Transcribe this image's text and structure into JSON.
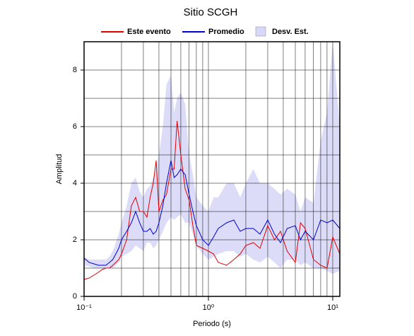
{
  "chart_data": {
    "type": "line",
    "title": "Sitio SCGH",
    "xlabel": "Periodo (s)",
    "ylabel": "Amplitud",
    "xscale": "log",
    "xlim": [
      0.1,
      11.4
    ],
    "ylim": [
      0,
      9
    ],
    "xticks": [
      {
        "value": 0.1,
        "label": "10⁻¹"
      },
      {
        "value": 1,
        "label": "10⁰"
      },
      {
        "value": 10,
        "label": "10¹"
      }
    ],
    "xminor": [
      0.2,
      0.3,
      0.4,
      0.5,
      0.6,
      0.7,
      0.8,
      0.9,
      2,
      3,
      4,
      5,
      6,
      7,
      8,
      9
    ],
    "yticks": [
      0,
      2,
      4,
      6,
      8
    ],
    "yminor": [
      1,
      3,
      5,
      7
    ],
    "grid": true,
    "legend": "top",
    "x": [
      0.1,
      0.11,
      0.12,
      0.13,
      0.14,
      0.15,
      0.16,
      0.17,
      0.18,
      0.19,
      0.2,
      0.22,
      0.24,
      0.26,
      0.28,
      0.3,
      0.32,
      0.34,
      0.36,
      0.38,
      0.4,
      0.43,
      0.46,
      0.5,
      0.53,
      0.56,
      0.6,
      0.65,
      0.7,
      0.75,
      0.8,
      0.9,
      1.0,
      1.1,
      1.2,
      1.4,
      1.6,
      1.8,
      2.0,
      2.3,
      2.6,
      3.0,
      3.4,
      3.8,
      4.3,
      5,
      5.5,
      6,
      7,
      8,
      9,
      10,
      11.4
    ],
    "series": [
      {
        "name": "Este evento",
        "color": "#e00000",
        "values": [
          0.6,
          0.65,
          0.75,
          0.85,
          0.95,
          1.0,
          1.0,
          1.1,
          1.2,
          1.3,
          1.5,
          2.0,
          3.2,
          3.5,
          3.0,
          3.0,
          2.8,
          3.5,
          4.0,
          4.8,
          3.0,
          3.4,
          3.6,
          4.5,
          4.5,
          6.2,
          5.0,
          3.8,
          3.4,
          2.5,
          1.8,
          1.7,
          1.6,
          1.5,
          1.2,
          1.1,
          1.3,
          1.5,
          1.8,
          1.9,
          1.7,
          2.5,
          2.0,
          2.3,
          1.6,
          1.2,
          2.6,
          2.4,
          1.3,
          1.1,
          1.0,
          2.1,
          1.5
        ]
      },
      {
        "name": "Promedio",
        "color": "#0000d0",
        "values": [
          1.35,
          1.2,
          1.15,
          1.1,
          1.1,
          1.1,
          1.2,
          1.3,
          1.5,
          1.7,
          2.0,
          2.3,
          2.6,
          3.0,
          2.6,
          2.3,
          2.3,
          2.4,
          2.2,
          2.3,
          2.6,
          3.2,
          4.0,
          4.8,
          4.2,
          4.3,
          4.5,
          4.3,
          3.6,
          3.0,
          2.5,
          2.0,
          1.8,
          2.1,
          2.4,
          2.6,
          2.7,
          2.3,
          2.4,
          2.4,
          2.2,
          2.7,
          2.2,
          1.9,
          2.4,
          2.5,
          2.0,
          2.3,
          2.0,
          2.7,
          2.6,
          2.7,
          2.4
        ]
      },
      {
        "name": "Desv. Est.",
        "color": "#d8d8f8",
        "type": "band",
        "upper": [
          1.4,
          1.3,
          1.3,
          1.3,
          1.3,
          1.3,
          1.4,
          1.6,
          1.9,
          2.2,
          2.6,
          3.2,
          4.0,
          4.2,
          3.7,
          3.5,
          3.8,
          3.9,
          4.2,
          4.5,
          5.0,
          6.0,
          7.5,
          7.8,
          6.5,
          7.0,
          7.2,
          6.8,
          5.0,
          4.3,
          3.5,
          3.2,
          3.0,
          3.5,
          3.5,
          4.0,
          4.0,
          3.5,
          4.0,
          4.5,
          4.0,
          4.0,
          3.8,
          3.6,
          3.8,
          3.6,
          3.0,
          3.5,
          3.3,
          5.5,
          6.5,
          9.0,
          6.0
        ],
        "lower": [
          1.1,
          1.05,
          1.0,
          1.0,
          1.0,
          1.0,
          1.0,
          1.0,
          1.1,
          1.2,
          1.4,
          1.5,
          1.6,
          1.8,
          1.7,
          1.6,
          1.9,
          1.9,
          1.7,
          1.8,
          2.0,
          2.3,
          2.6,
          2.8,
          2.7,
          2.8,
          2.9,
          2.6,
          2.6,
          2.2,
          1.8,
          1.5,
          1.3,
          1.4,
          1.5,
          1.6,
          1.6,
          1.4,
          1.5,
          1.3,
          1.2,
          1.4,
          1.2,
          1.0,
          1.3,
          1.3,
          1.1,
          1.2,
          1.0,
          1.0,
          0.9,
          0.8,
          0.9
        ]
      }
    ]
  }
}
